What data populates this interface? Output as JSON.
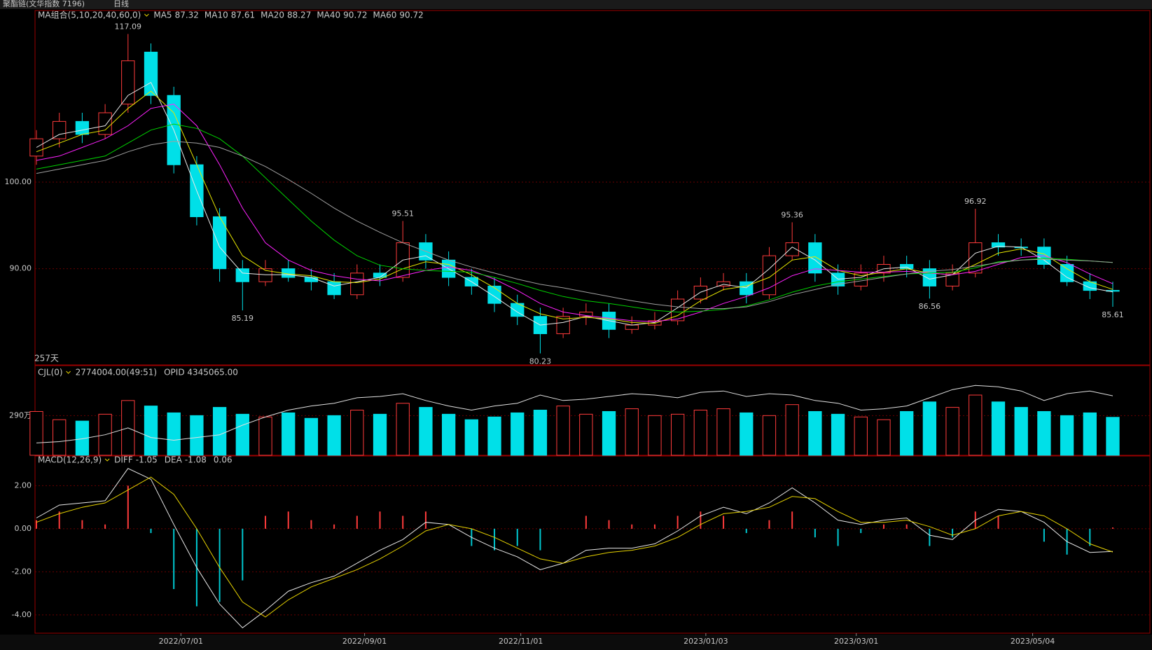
{
  "header": {
    "title": "聚酯链(文华指数 7196)",
    "period": "日线"
  },
  "chart_data": [
    {
      "type": "candlestick",
      "indicator": "MA组合(5,10,20,40,60,0)",
      "day_count": "257天",
      "up_color": "#ff3b3b",
      "down_color": "#00e0e8",
      "ylim": [
        78.9,
        119.8
      ],
      "yticks": [
        {
          "value": 90,
          "label": "90.00"
        },
        {
          "value": 100,
          "label": "100.00"
        }
      ],
      "grid": true,
      "open": [
        103,
        105,
        107,
        105.5,
        109,
        115,
        110,
        102,
        96,
        90,
        88.5,
        90,
        89,
        88.5,
        87,
        89.5,
        89,
        93,
        91,
        89,
        88,
        86,
        84.5,
        82.5,
        84.5,
        85,
        83,
        83.5,
        84,
        86.5,
        88,
        88.5,
        87,
        91.5,
        93,
        89.5,
        88,
        89.5,
        90.5,
        90,
        88,
        89.5,
        93,
        92.5,
        92.5,
        90.5,
        88.5,
        87.5
      ],
      "high": [
        106,
        108,
        108,
        109,
        117.09,
        116,
        111,
        103,
        97,
        91,
        91,
        91,
        90,
        89.5,
        90.5,
        90.5,
        95.51,
        94,
        92,
        90,
        89,
        87,
        85.5,
        85.5,
        86,
        86,
        84.5,
        85,
        87.5,
        89,
        89.5,
        89.5,
        92.5,
        95.36,
        94,
        90.5,
        90.5,
        91.5,
        91.5,
        91,
        90.5,
        96.92,
        94,
        93.5,
        93.5,
        91.5,
        89.5,
        88.5
      ],
      "low": [
        102,
        104,
        104.5,
        105,
        108,
        109,
        101,
        95,
        88.5,
        85.19,
        88,
        88.5,
        87.5,
        86.5,
        86.5,
        88,
        88.5,
        90,
        88,
        87,
        85,
        83.5,
        80.23,
        82,
        83.5,
        82,
        82.5,
        83,
        83.5,
        86,
        87.5,
        86,
        86.5,
        91,
        88.5,
        87,
        87.5,
        88.5,
        89,
        86.56,
        87.5,
        89,
        91.5,
        91.5,
        90,
        88,
        86.5,
        85.61
      ],
      "close": [
        105,
        107,
        105.5,
        108,
        114,
        110,
        102,
        96,
        90,
        88.5,
        90,
        89,
        88.5,
        87,
        89.5,
        89,
        93,
        91,
        89,
        88,
        86,
        84.5,
        82.5,
        84.5,
        85,
        83,
        83.5,
        84,
        86.5,
        88,
        88.5,
        87,
        91.5,
        93,
        89.5,
        88,
        89.5,
        90.5,
        90,
        88,
        89.5,
        93,
        92.5,
        92.5,
        90.5,
        88.5,
        87.5,
        87.4
      ],
      "annotations": [
        {
          "x": 4,
          "value": 117.09,
          "color": "#ff3b3b"
        },
        {
          "x": 9,
          "value": 85.19,
          "color": "#00e0e8"
        },
        {
          "x": 16,
          "value": 95.51,
          "color": "#ff3b3b"
        },
        {
          "x": 22,
          "value": 80.23,
          "color": "#00e0e8"
        },
        {
          "x": 33,
          "value": 95.36,
          "color": "#ff3b3b"
        },
        {
          "x": 39,
          "value": 86.56,
          "color": "#00e0e8"
        },
        {
          "x": 41,
          "value": 96.92,
          "color": "#ff3b3b"
        },
        {
          "x": 47,
          "value": 85.61,
          "color": "#00e0e8"
        }
      ],
      "series": [
        {
          "name": "MA5",
          "color": "#e8e8e8",
          "values": [
            104,
            105.5,
            106,
            106.5,
            110,
            111.5,
            106,
            99,
            92.5,
            89.5,
            89.3,
            89.3,
            89,
            88,
            88.5,
            89,
            91,
            91.5,
            90,
            88.5,
            86.8,
            85,
            83.5,
            83.8,
            84.5,
            84,
            83.5,
            83.8,
            85.5,
            87.3,
            88.2,
            87.8,
            90,
            92.5,
            91,
            88.8,
            89,
            90,
            90.2,
            88.8,
            89.3,
            91.8,
            92.6,
            92.5,
            91,
            89,
            87.8,
            87.32
          ]
        },
        {
          "name": "MA10",
          "color": "#e6e600",
          "values": [
            103.5,
            104.5,
            105.5,
            106,
            108.5,
            110.5,
            108,
            102,
            96,
            91.5,
            89.8,
            89.4,
            89.2,
            88.5,
            88.4,
            88.8,
            90,
            90.8,
            90.5,
            89.3,
            87.8,
            86,
            84.8,
            84.2,
            84.4,
            84.2,
            83.8,
            83.7,
            84.6,
            86.3,
            87.6,
            88,
            89,
            91,
            91.4,
            89.8,
            89.2,
            89.6,
            90,
            89.5,
            89.3,
            90.5,
            91.8,
            92.3,
            91.7,
            90,
            88.5,
            87.61
          ]
        },
        {
          "name": "MA20",
          "color": "#ff22ff",
          "values": [
            102.5,
            103,
            104,
            105,
            106.5,
            108.5,
            109,
            106.5,
            102,
            97,
            93,
            91,
            89.8,
            89.2,
            88.8,
            88.6,
            89.2,
            89.8,
            90.2,
            89.8,
            88.8,
            87.5,
            86,
            85,
            84.6,
            84.3,
            84,
            83.9,
            84.2,
            85,
            86,
            86.8,
            87.8,
            89.2,
            90,
            89.8,
            89.6,
            89.6,
            89.7,
            89.5,
            89.3,
            89.7,
            90.5,
            91.3,
            91.5,
            90.7,
            89.4,
            88.27
          ]
        },
        {
          "name": "MA40",
          "color": "#00d200",
          "values": [
            101.5,
            102,
            102.5,
            103,
            104.5,
            106,
            106.7,
            106.2,
            105,
            103,
            100.5,
            98,
            95.5,
            93.3,
            91.5,
            90.4,
            90,
            89.8,
            89.7,
            89.6,
            89,
            88.3,
            87.5,
            86.8,
            86.3,
            86,
            85.6,
            85.2,
            85,
            85.1,
            85.3,
            85.7,
            86.4,
            87.3,
            88,
            88.5,
            88.8,
            89.1,
            89.4,
            89.5,
            89.6,
            90.1,
            90.8,
            91,
            91.2,
            91.1,
            90.9,
            90.72
          ]
        },
        {
          "name": "MA60",
          "color": "#a0a0a0",
          "values": [
            101,
            101.5,
            102,
            102.5,
            103.5,
            104.3,
            104.7,
            104.5,
            104,
            103,
            101.8,
            100.3,
            98.7,
            97,
            95.5,
            94.2,
            93,
            92,
            91,
            90.2,
            89.5,
            88.8,
            88.2,
            87.8,
            87.3,
            86.8,
            86.3,
            85.9,
            85.6,
            85.4,
            85.4,
            85.6,
            86.2,
            87,
            87.6,
            88.2,
            88.6,
            89,
            89.4,
            89.7,
            89.9,
            90.3,
            90.7,
            91,
            91.1,
            91,
            90.9,
            90.72
          ]
        }
      ]
    },
    {
      "type": "bar",
      "indicator": "CJL(0)",
      "readouts": [
        "2774004.00(49:51)",
        "OPID 4345065.00"
      ],
      "ylim": [
        0,
        6550000
      ],
      "yticks": [
        {
          "value": 2900000,
          "label": "290万"
        }
      ],
      "grid": true,
      "values": [
        3200000,
        2600000,
        2500000,
        3000000,
        4000000,
        3600000,
        3100000,
        2900000,
        3500000,
        3000000,
        2800000,
        3100000,
        2700000,
        2900000,
        3300000,
        3000000,
        3800000,
        3500000,
        3000000,
        2600000,
        2800000,
        3100000,
        3300000,
        3600000,
        3000000,
        3200000,
        3400000,
        2900000,
        3000000,
        3300000,
        3400000,
        3100000,
        2900000,
        3700000,
        3200000,
        3000000,
        2800000,
        2600000,
        3200000,
        3900000,
        3500000,
        4400000,
        3900000,
        3500000,
        3200000,
        2900000,
        3100000,
        2774004
      ],
      "line": {
        "color": "#e0e0e0",
        "values": [
          900000,
          1000000,
          1200000,
          1500000,
          2000000,
          1300000,
          1100000,
          1300000,
          1500000,
          2200000,
          2800000,
          3300000,
          3600000,
          3800000,
          4200000,
          4300000,
          4500000,
          4000000,
          3600000,
          3300000,
          3600000,
          3800000,
          4400000,
          4000000,
          4100000,
          4300000,
          4500000,
          4400000,
          4200000,
          4600000,
          4700000,
          4300000,
          4500000,
          4400000,
          4000000,
          3800000,
          3300000,
          3400000,
          3600000,
          4200000,
          4800000,
          5100000,
          5000000,
          4700000,
          4000000,
          4500000,
          4700000,
          4345065
        ]
      }
    },
    {
      "type": "macd",
      "indicator": "MACD(12,26,9)",
      "ylim": [
        -4.85,
        3.38
      ],
      "yticks": [
        {
          "value": 2,
          "label": "2.00"
        },
        {
          "value": 0,
          "label": "0.00"
        },
        {
          "value": -2,
          "label": "-2.00"
        },
        {
          "value": -4,
          "label": "-4.00"
        }
      ],
      "grid": true,
      "xlim": [
        0,
        47
      ],
      "xticks": [
        {
          "value": 6.31,
          "label": "2022/07/01"
        },
        {
          "value": 14.33,
          "label": "2022/09/01"
        },
        {
          "value": 21.15,
          "label": "2022/11/01"
        },
        {
          "value": 29.23,
          "label": "2023/01/03"
        },
        {
          "value": 35.8,
          "label": "2023/03/01"
        },
        {
          "value": 43.5,
          "label": "2023/05/04"
        }
      ],
      "series": [
        {
          "name": "DIFF",
          "color": "#e8e8e8",
          "values": [
            0.5,
            1.1,
            1.2,
            1.3,
            2.8,
            2.3,
            0.2,
            -1.8,
            -3.5,
            -4.6,
            -3.8,
            -2.9,
            -2.5,
            -2.2,
            -1.6,
            -1,
            -0.5,
            0.3,
            0.2,
            -0.4,
            -0.9,
            -1.3,
            -1.9,
            -1.6,
            -1,
            -0.9,
            -0.9,
            -0.7,
            -0.1,
            0.6,
            1,
            0.7,
            1.2,
            1.9,
            1.2,
            0.4,
            0.2,
            0.4,
            0.5,
            -0.3,
            -0.5,
            0.4,
            0.9,
            0.8,
            0.3,
            -0.6,
            -1.1,
            -1.05
          ]
        },
        {
          "name": "DEA",
          "color": "#e6d200",
          "values": [
            0.3,
            0.7,
            1,
            1.2,
            1.8,
            2.4,
            1.6,
            0,
            -1.8,
            -3.4,
            -4.1,
            -3.3,
            -2.7,
            -2.3,
            -1.9,
            -1.4,
            -0.8,
            -0.1,
            0.2,
            0,
            -0.4,
            -0.9,
            -1.4,
            -1.6,
            -1.3,
            -1.1,
            -1,
            -0.8,
            -0.4,
            0.2,
            0.7,
            0.8,
            1,
            1.5,
            1.4,
            0.8,
            0.3,
            0.3,
            0.4,
            0.1,
            -0.3,
            0,
            0.6,
            0.8,
            0.6,
            0,
            -0.7,
            -1.08
          ]
        }
      ],
      "histogram": {
        "up_color": "#ff3b3b",
        "down_color": "#00c8d0",
        "values": [
          0.4,
          0.8,
          0.4,
          0.2,
          2,
          -0.2,
          -2.8,
          -3.6,
          -3.4,
          -2.4,
          0.6,
          0.8,
          0.4,
          0.2,
          0.6,
          0.8,
          0.6,
          0.8,
          0,
          -0.8,
          -1,
          -0.8,
          -1,
          0,
          0.6,
          0.4,
          0.2,
          0.2,
          0.6,
          0.8,
          0.6,
          -0.2,
          0.4,
          0.8,
          -0.4,
          -0.8,
          -0.2,
          0.2,
          0.2,
          -0.8,
          -0.4,
          0.8,
          0.6,
          0,
          -0.6,
          -1.2,
          -0.8,
          0.06
        ]
      }
    }
  ]
}
